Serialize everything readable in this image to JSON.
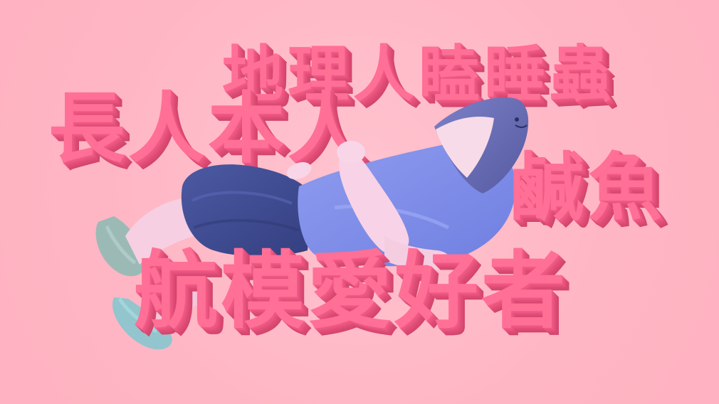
{
  "scene": {
    "background_color": "#ffb8c6",
    "text_color": "#ff6f96",
    "text_shadow_color": "#d2446b",
    "figure_description_icon": "reclining-shark-costume-figure"
  },
  "words": {
    "top": "地理人瞌睡蟲",
    "left": "長人本人",
    "right": "鹹魚",
    "bottom": "航模愛好者"
  }
}
